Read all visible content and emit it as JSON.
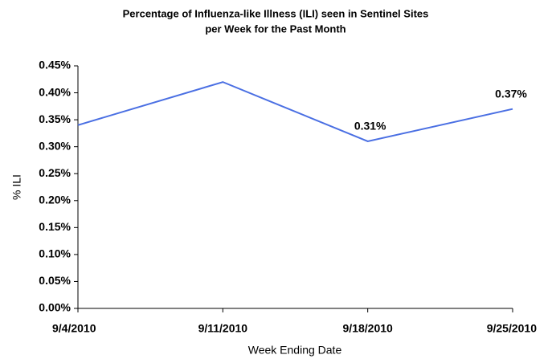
{
  "chart_data": {
    "type": "line",
    "title": [
      "Percentage of Influenza-like Illness (ILI) seen in Sentinel Sites",
      "per Week for the Past Month"
    ],
    "x_label": "Week Ending Date",
    "y_label": "% ILI",
    "categories": [
      "9/4/2010",
      "9/11/2010",
      "9/18/2010",
      "9/25/2010"
    ],
    "values": [
      0.34,
      0.42,
      0.31,
      0.37
    ],
    "value_labels": [
      null,
      null,
      "0.31%",
      "0.37%"
    ],
    "color": "#4a6fe3",
    "ylim": [
      0,
      0.45
    ],
    "yticks": [
      {
        "value": 0,
        "label": "0.00%"
      },
      {
        "value": 0.05,
        "label": "0.05%"
      },
      {
        "value": 0.1,
        "label": "0.10%"
      },
      {
        "value": 0.15,
        "label": "0.15%"
      },
      {
        "value": 0.2,
        "label": "0.20%"
      },
      {
        "value": 0.25,
        "label": "0.25%"
      },
      {
        "value": 0.3,
        "label": "0.30%"
      },
      {
        "value": 0.35,
        "label": "0.35%"
      },
      {
        "value": 0.4,
        "label": "0.40%"
      },
      {
        "value": 0.45,
        "label": "0.45%"
      }
    ],
    "grid": false
  }
}
